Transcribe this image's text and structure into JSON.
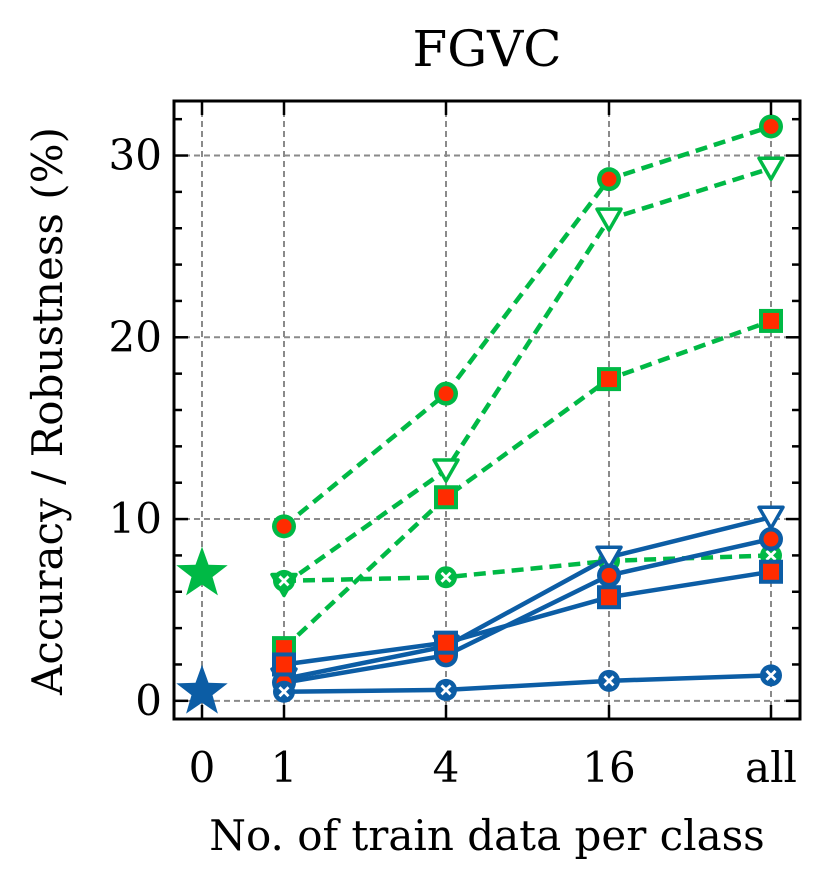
{
  "chart_data": {
    "type": "line",
    "title": "FGVC",
    "xlabel": "No. of train data per class",
    "ylabel": "Accuracy / Robustness (%)",
    "x_categories": [
      "0",
      "1",
      "4",
      "16",
      "all"
    ],
    "y_ticks": [
      0,
      10,
      20,
      30
    ],
    "ylim": [
      -1,
      33
    ],
    "grid": true,
    "colors": {
      "green": "#00b945",
      "blue": "#0c5da5",
      "red": "#ff2c00"
    },
    "zero_shot": [
      {
        "name": "green-zero-shot",
        "color": "green",
        "x": "0",
        "y": 7.0
      },
      {
        "name": "blue-zero-shot",
        "color": "blue",
        "x": "0",
        "y": 0.5
      }
    ],
    "series": [
      {
        "name": "green-circle",
        "color": "green",
        "marker": "circle",
        "dashed": true,
        "x": [
          "1",
          "4",
          "16",
          "all"
        ],
        "values": [
          9.6,
          16.9,
          28.7,
          31.6
        ]
      },
      {
        "name": "green-triangle",
        "color": "green",
        "marker": "triangle",
        "dashed": true,
        "x": [
          "1",
          "4",
          "16",
          "all"
        ],
        "values": [
          6.4,
          12.7,
          26.5,
          29.3
        ]
      },
      {
        "name": "green-square",
        "color": "green",
        "marker": "square",
        "dashed": true,
        "x": [
          "1",
          "4",
          "16",
          "all"
        ],
        "values": [
          2.9,
          11.2,
          17.7,
          20.9
        ]
      },
      {
        "name": "green-cross",
        "color": "green",
        "marker": "x",
        "dashed": true,
        "x": [
          "1",
          "4",
          "16",
          "all"
        ],
        "values": [
          6.6,
          6.8,
          7.7,
          8.0
        ]
      },
      {
        "name": "blue-triangle",
        "color": "blue",
        "marker": "triangle",
        "dashed": false,
        "x": [
          "1",
          "4",
          "16",
          "all"
        ],
        "values": [
          1.2,
          3.0,
          7.9,
          10.1
        ]
      },
      {
        "name": "blue-circle",
        "color": "blue",
        "marker": "circle",
        "dashed": false,
        "x": [
          "1",
          "4",
          "16",
          "all"
        ],
        "values": [
          1.0,
          2.5,
          6.9,
          8.9
        ]
      },
      {
        "name": "blue-square",
        "color": "blue",
        "marker": "square",
        "dashed": false,
        "x": [
          "1",
          "4",
          "16",
          "all"
        ],
        "values": [
          2.0,
          3.2,
          5.7,
          7.1
        ]
      },
      {
        "name": "blue-cross",
        "color": "blue",
        "marker": "x",
        "dashed": false,
        "x": [
          "1",
          "4",
          "16",
          "all"
        ],
        "values": [
          0.5,
          0.6,
          1.1,
          1.4
        ]
      }
    ]
  }
}
